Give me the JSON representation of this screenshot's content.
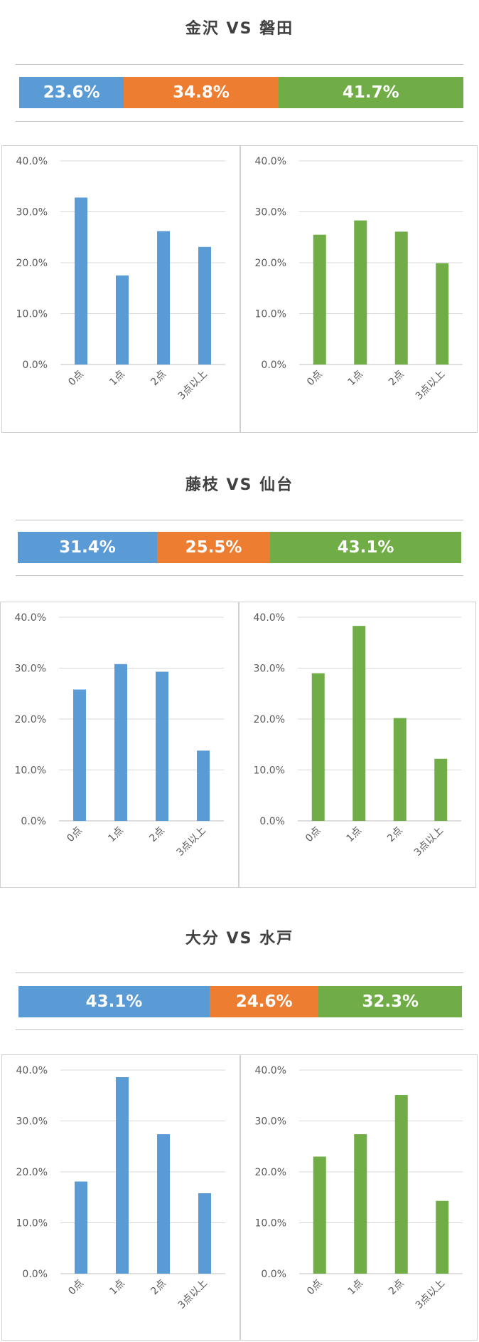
{
  "colors": {
    "home": "#5b9bd5",
    "draw": "#ed7d31",
    "away": "#70ad47"
  },
  "matches": [
    {
      "title": "金沢 VS 磐田",
      "outcome": [
        {
          "label": "23.6%",
          "value": 23.6,
          "color": "#5b9bd5"
        },
        {
          "label": "34.8%",
          "value": 34.8,
          "color": "#ed7d31"
        },
        {
          "label": "41.7%",
          "value": 41.7,
          "color": "#70ad47"
        }
      ]
    },
    {
      "title": "藤枝 VS 仙台",
      "outcome": [
        {
          "label": "31.4%",
          "value": 31.4,
          "color": "#5b9bd5"
        },
        {
          "label": "25.5%",
          "value": 25.5,
          "color": "#ed7d31"
        },
        {
          "label": "43.1%",
          "value": 43.1,
          "color": "#70ad47"
        }
      ]
    },
    {
      "title": "大分 VS 水戸",
      "outcome": [
        {
          "label": "43.1%",
          "value": 43.1,
          "color": "#5b9bd5"
        },
        {
          "label": "24.6%",
          "value": 24.6,
          "color": "#ed7d31"
        },
        {
          "label": "32.3%",
          "value": 32.3,
          "color": "#70ad47"
        }
      ]
    }
  ],
  "chart_data": [
    {
      "type": "bar",
      "categories": [
        "0点",
        "1点",
        "2点",
        "3点以上"
      ],
      "values": [
        32.8,
        17.5,
        26.2,
        23.1
      ],
      "ylim": [
        0,
        40
      ],
      "yticks": [
        "0.0%",
        "10.0%",
        "20.0%",
        "30.0%",
        "40.0%"
      ],
      "color": "#5b9bd5",
      "grid": true
    },
    {
      "type": "bar",
      "categories": [
        "0点",
        "1点",
        "2点",
        "3点以上"
      ],
      "values": [
        25.5,
        28.3,
        26.1,
        19.9
      ],
      "ylim": [
        0,
        40
      ],
      "yticks": [
        "0.0%",
        "10.0%",
        "20.0%",
        "30.0%",
        "40.0%"
      ],
      "color": "#70ad47",
      "grid": true
    },
    {
      "type": "bar",
      "categories": [
        "0点",
        "1点",
        "2点",
        "3点以上"
      ],
      "values": [
        25.8,
        30.8,
        29.3,
        13.8
      ],
      "ylim": [
        0,
        40
      ],
      "yticks": [
        "0.0%",
        "10.0%",
        "20.0%",
        "30.0%",
        "40.0%"
      ],
      "color": "#5b9bd5",
      "grid": true
    },
    {
      "type": "bar",
      "categories": [
        "0点",
        "1点",
        "2点",
        "3点以上"
      ],
      "values": [
        29.0,
        38.3,
        20.2,
        12.2
      ],
      "ylim": [
        0,
        40
      ],
      "yticks": [
        "0.0%",
        "10.0%",
        "20.0%",
        "30.0%",
        "40.0%"
      ],
      "color": "#70ad47",
      "grid": true
    },
    {
      "type": "bar",
      "categories": [
        "0点",
        "1点",
        "2点",
        "3点以上"
      ],
      "values": [
        18.1,
        38.6,
        27.4,
        15.8
      ],
      "ylim": [
        0,
        40
      ],
      "yticks": [
        "0.0%",
        "10.0%",
        "20.0%",
        "30.0%",
        "40.0%"
      ],
      "color": "#5b9bd5",
      "grid": true
    },
    {
      "type": "bar",
      "categories": [
        "0点",
        "1点",
        "2点",
        "3点以上"
      ],
      "values": [
        23.0,
        27.4,
        35.1,
        14.3
      ],
      "ylim": [
        0,
        40
      ],
      "yticks": [
        "0.0%",
        "10.0%",
        "20.0%",
        "30.0%",
        "40.0%"
      ],
      "color": "#70ad47",
      "grid": true
    }
  ]
}
